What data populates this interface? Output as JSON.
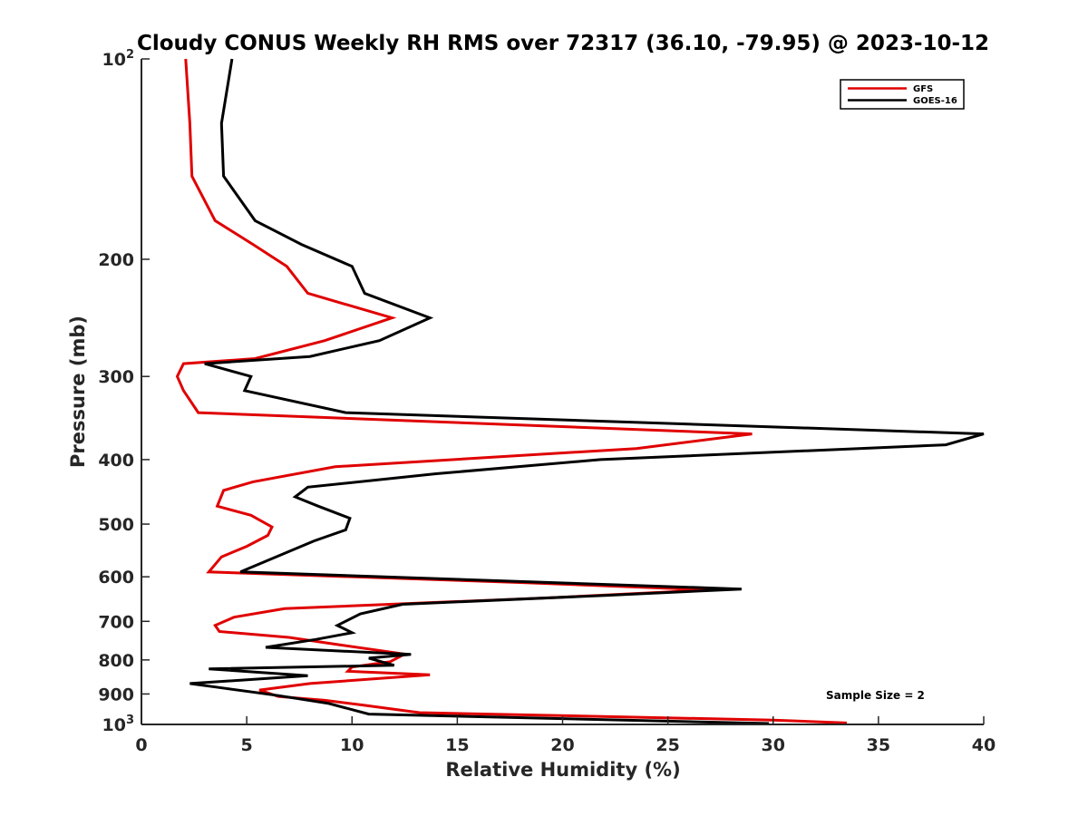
{
  "chart_data": {
    "type": "line",
    "title": "Cloudy CONUS Weekly RH RMS over 72317 (36.10, -79.95) @ 2023-10-12",
    "xlabel": "Relative Humidity (%)",
    "ylabel": "Pressure (mb)",
    "xlim": [
      0,
      40
    ],
    "ylim": [
      100,
      1000
    ],
    "y_scale": "log",
    "y_reversed": true,
    "x_ticks": [
      "0",
      "5",
      "10",
      "15",
      "20",
      "25",
      "30",
      "35",
      "40"
    ],
    "y_ticks": [
      {
        "value": 100,
        "base": "10",
        "exp": "2"
      },
      {
        "value": 200,
        "label": "200"
      },
      {
        "value": 300,
        "label": "300"
      },
      {
        "value": 400,
        "label": "400"
      },
      {
        "value": 500,
        "label": "500"
      },
      {
        "value": 600,
        "label": "600"
      },
      {
        "value": 700,
        "label": "700"
      },
      {
        "value": 800,
        "label": "800"
      },
      {
        "value": 900,
        "label": "900"
      },
      {
        "value": 1000,
        "base": "10",
        "exp": "3"
      }
    ],
    "grid": false,
    "legend_position": "top-right",
    "annotation": "Sample Size = 2",
    "series": [
      {
        "name": "GFS",
        "color": "#e00000",
        "points": [
          [
            2.1,
            100
          ],
          [
            2.3,
            125
          ],
          [
            2.4,
            150
          ],
          [
            3.5,
            175
          ],
          [
            5.3,
            190
          ],
          [
            6.9,
            205
          ],
          [
            7.9,
            225
          ],
          [
            11.9,
            245
          ],
          [
            8.7,
            265
          ],
          [
            5.4,
            282
          ],
          [
            2.0,
            287
          ],
          [
            1.7,
            300
          ],
          [
            2.0,
            315
          ],
          [
            2.7,
            340
          ],
          [
            29.0,
            366
          ],
          [
            23.5,
            385
          ],
          [
            9.2,
            410
          ],
          [
            5.3,
            432
          ],
          [
            3.9,
            445
          ],
          [
            3.6,
            470
          ],
          [
            5.2,
            485
          ],
          [
            6.2,
            505
          ],
          [
            6.0,
            520
          ],
          [
            5.0,
            540
          ],
          [
            3.8,
            560
          ],
          [
            3.2,
            590
          ],
          [
            18.0,
            612
          ],
          [
            27.0,
            628
          ],
          [
            19.5,
            645
          ],
          [
            6.8,
            670
          ],
          [
            4.4,
            690
          ],
          [
            3.5,
            710
          ],
          [
            3.7,
            725
          ],
          [
            7.0,
            740
          ],
          [
            9.5,
            760
          ],
          [
            12.5,
            784
          ],
          [
            11.8,
            805
          ],
          [
            10.0,
            820
          ],
          [
            9.8,
            832
          ],
          [
            13.7,
            842
          ],
          [
            8.0,
            868
          ],
          [
            5.6,
            888
          ],
          [
            6.5,
            908
          ],
          [
            8.7,
            920
          ],
          [
            10.5,
            935
          ],
          [
            13.2,
            960
          ],
          [
            30.0,
            985
          ],
          [
            33.5,
            995
          ]
        ]
      },
      {
        "name": "GOES-16",
        "color": "#000000",
        "points": [
          [
            4.3,
            100
          ],
          [
            3.8,
            125
          ],
          [
            3.9,
            150
          ],
          [
            5.4,
            175
          ],
          [
            7.6,
            190
          ],
          [
            10.0,
            205
          ],
          [
            10.6,
            225
          ],
          [
            13.7,
            245
          ],
          [
            11.3,
            265
          ],
          [
            8.0,
            280
          ],
          [
            3.0,
            287
          ],
          [
            5.2,
            300
          ],
          [
            4.9,
            315
          ],
          [
            9.7,
            340
          ],
          [
            40.0,
            366
          ],
          [
            38.2,
            380
          ],
          [
            21.8,
            400
          ],
          [
            14.0,
            420
          ],
          [
            7.9,
            440
          ],
          [
            7.3,
            455
          ],
          [
            8.4,
            470
          ],
          [
            9.9,
            490
          ],
          [
            9.7,
            510
          ],
          [
            8.2,
            530
          ],
          [
            6.7,
            555
          ],
          [
            4.7,
            590
          ],
          [
            28.5,
            626
          ],
          [
            22.0,
            640
          ],
          [
            12.4,
            660
          ],
          [
            10.4,
            682
          ],
          [
            9.3,
            710
          ],
          [
            10.0,
            728
          ],
          [
            8.3,
            745
          ],
          [
            5.9,
            766
          ],
          [
            12.8,
            785
          ],
          [
            10.8,
            795
          ],
          [
            12.0,
            815
          ],
          [
            3.2,
            825
          ],
          [
            7.9,
            845
          ],
          [
            2.3,
            868
          ],
          [
            3.7,
            880
          ],
          [
            6.5,
            905
          ],
          [
            8.9,
            930
          ],
          [
            10.8,
            965
          ],
          [
            29.8,
            997
          ]
        ]
      }
    ]
  }
}
